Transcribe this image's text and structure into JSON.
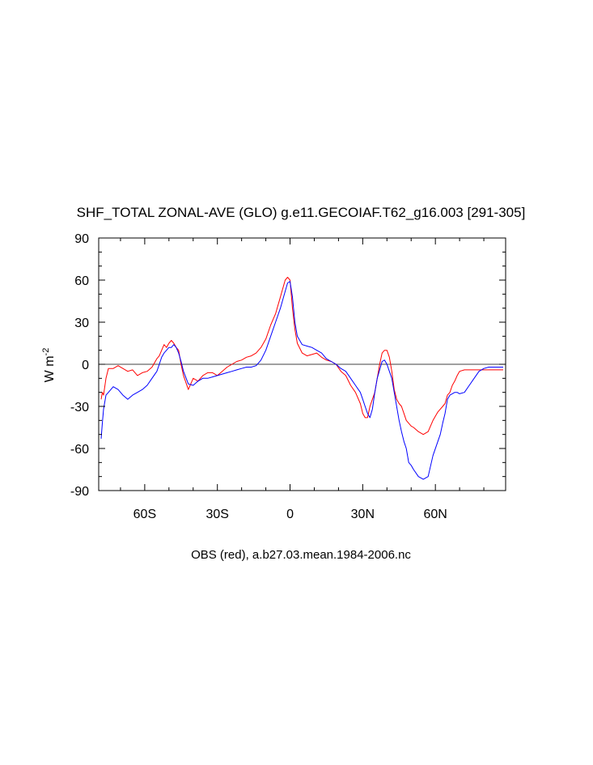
{
  "chart_data": {
    "type": "line",
    "title": "SHF_TOTAL ZONAL-AVE (GLO) g.e11.GECOIAF.T62_g16.003 [291-305]",
    "ylabel": "W m",
    "ylabel_superscript": "-2",
    "caption": "OBS (red), a.b27.03.mean.1984-2006.nc",
    "xlim": [
      -79,
      89
    ],
    "ylim": [
      -90,
      90
    ],
    "x_ticks": [
      {
        "value": -60,
        "label": "60S"
      },
      {
        "value": -30,
        "label": "30S"
      },
      {
        "value": 0,
        "label": "0"
      },
      {
        "value": 30,
        "label": "30N"
      },
      {
        "value": 60,
        "label": "60N"
      }
    ],
    "y_ticks": [
      {
        "value": 90,
        "label": "90"
      },
      {
        "value": 60,
        "label": "60"
      },
      {
        "value": 30,
        "label": "30"
      },
      {
        "value": 0,
        "label": "0"
      },
      {
        "value": -30,
        "label": "-30"
      },
      {
        "value": -60,
        "label": "-60"
      },
      {
        "value": -90,
        "label": "-90"
      }
    ],
    "zero_line": true,
    "grid": false,
    "legend": "none",
    "series": [
      {
        "color": "#ff0000",
        "x": [
          -78,
          -77.5,
          -77,
          -76,
          -75,
          -73,
          -71,
          -69,
          -67,
          -65,
          -63,
          -61,
          -59,
          -57,
          -55,
          -54,
          -53,
          -52,
          -51,
          -50,
          -49,
          -48,
          -47,
          -46,
          -45,
          -44,
          -42,
          -40,
          -38,
          -36,
          -34,
          -32,
          -30,
          -28,
          -26,
          -24,
          -22,
          -20,
          -18,
          -16,
          -14,
          -12,
          -10,
          -8,
          -6,
          -4,
          -2,
          -1,
          0,
          1,
          2,
          3,
          5,
          7,
          9,
          11,
          13,
          15,
          17,
          19,
          21,
          23,
          25,
          27,
          29,
          30,
          31,
          32,
          33,
          34,
          35,
          36,
          37,
          38,
          39,
          40,
          41,
          42,
          43,
          44,
          45,
          46,
          47,
          48,
          49,
          50,
          51,
          53,
          55,
          57,
          59,
          61,
          63,
          64,
          65,
          66,
          67,
          68,
          69,
          70,
          72,
          74,
          76,
          78,
          80,
          82,
          84,
          86,
          88
        ],
        "y": [
          -25,
          -20,
          -22,
          -10,
          -3,
          -3,
          -1,
          -3,
          -5,
          -4,
          -8,
          -6,
          -5,
          -2,
          4,
          6,
          10,
          14,
          12,
          15,
          17,
          15,
          12,
          10,
          0,
          -8,
          -18,
          -10,
          -12,
          -8,
          -6,
          -6,
          -8,
          -5,
          -2,
          0,
          2,
          3,
          5,
          6,
          8,
          12,
          18,
          28,
          36,
          48,
          60,
          62,
          60,
          40,
          25,
          15,
          8,
          6,
          7,
          8,
          5,
          3,
          2,
          0,
          -5,
          -8,
          -15,
          -20,
          -28,
          -35,
          -38,
          -38,
          -30,
          -25,
          -20,
          -10,
          0,
          8,
          10,
          10,
          5,
          -5,
          -18,
          -25,
          -28,
          -30,
          -35,
          -40,
          -42,
          -44,
          -45,
          -48,
          -50,
          -48,
          -40,
          -34,
          -30,
          -28,
          -22,
          -20,
          -15,
          -12,
          -8,
          -5,
          -4,
          -4,
          -4,
          -4,
          -4,
          -4,
          -4,
          -4,
          -4
        ],
        "smooth": false
      },
      {
        "color": "#0000ff",
        "x": [
          -78,
          -77.5,
          -77,
          -76,
          -75,
          -73,
          -71,
          -69,
          -67,
          -65,
          -63,
          -61,
          -59,
          -57,
          -55,
          -54,
          -53,
          -52,
          -51,
          -50,
          -49,
          -48,
          -47,
          -46,
          -45,
          -44,
          -42,
          -40,
          -38,
          -36,
          -34,
          -32,
          -30,
          -28,
          -26,
          -24,
          -22,
          -20,
          -18,
          -16,
          -14,
          -12,
          -10,
          -8,
          -6,
          -4,
          -2,
          -1,
          0,
          1,
          2,
          3,
          5,
          7,
          9,
          11,
          13,
          15,
          17,
          19,
          21,
          23,
          25,
          27,
          29,
          30,
          31,
          32,
          33,
          34,
          35,
          36,
          37,
          38,
          39,
          40,
          41,
          42,
          43,
          44,
          45,
          46,
          47,
          48,
          49,
          50,
          51,
          53,
          55,
          57,
          59,
          61,
          62,
          63,
          64,
          65,
          66,
          67,
          68,
          69,
          70,
          72,
          74,
          76,
          78,
          80,
          82,
          84,
          86,
          88
        ],
        "y": [
          -53,
          -42,
          -32,
          -22,
          -20,
          -16,
          -18,
          -22,
          -25,
          -22,
          -20,
          -18,
          -15,
          -10,
          -5,
          0,
          5,
          8,
          10,
          12,
          12,
          14,
          12,
          8,
          2,
          -5,
          -14,
          -15,
          -12,
          -10,
          -10,
          -9,
          -8,
          -7,
          -6,
          -5,
          -4,
          -3,
          -2,
          -2,
          -1,
          3,
          10,
          20,
          30,
          40,
          52,
          58,
          59,
          48,
          30,
          20,
          14,
          13,
          12,
          10,
          8,
          4,
          2,
          0,
          -3,
          -5,
          -10,
          -15,
          -20,
          -25,
          -30,
          -35,
          -38,
          -32,
          -20,
          -10,
          -4,
          2,
          3,
          0,
          -5,
          -10,
          -20,
          -30,
          -40,
          -48,
          -55,
          -60,
          -70,
          -72,
          -75,
          -80,
          -82,
          -80,
          -65,
          -55,
          -50,
          -42,
          -35,
          -25,
          -22,
          -21,
          -20,
          -20,
          -21,
          -20,
          -15,
          -10,
          -5,
          -3,
          -2,
          -2,
          -2,
          -2
        ],
        "smooth": false
      }
    ]
  }
}
